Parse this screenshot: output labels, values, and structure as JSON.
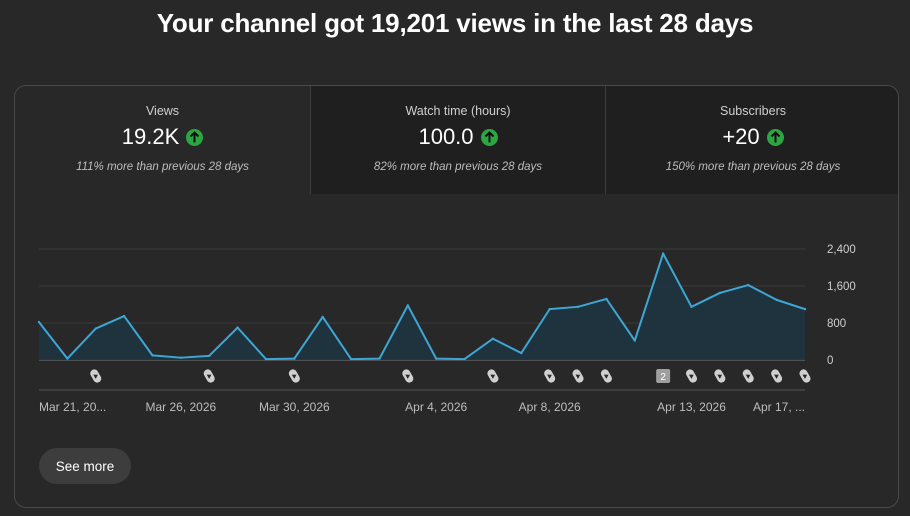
{
  "headline": "Your channel got 19,201 views in the last 28 days",
  "metrics": [
    {
      "label": "Views",
      "value": "19.2K",
      "trend": "up",
      "comparison": "111% more than previous 28 days"
    },
    {
      "label": "Watch time (hours)",
      "value": "100.0",
      "trend": "up",
      "comparison": "82% more than previous 28 days"
    },
    {
      "label": "Subscribers",
      "value": "+20",
      "trend": "up",
      "comparison": "150% more than previous 28 days"
    }
  ],
  "colors": {
    "line": "#3ea6d4",
    "fill": "#1e3440",
    "up_badge": "#2ba640",
    "grid": "#3a3a3a"
  },
  "chart_data": {
    "type": "area",
    "title": "",
    "xlabel": "",
    "ylabel": "",
    "ylim": [
      0,
      2400
    ],
    "yticks": [
      "2,400",
      "1,600",
      "800",
      "0"
    ],
    "ytick_values": [
      2400,
      1600,
      800,
      0
    ],
    "x_labels": [
      {
        "label": "Mar 21, 20...",
        "index": 0
      },
      {
        "label": "Mar 26, 2026",
        "index": 5
      },
      {
        "label": "Mar 30, 2026",
        "index": 9
      },
      {
        "label": "Apr 4, 2026",
        "index": 14
      },
      {
        "label": "Apr 8, 2026",
        "index": 18
      },
      {
        "label": "Apr 13, 2026",
        "index": 23
      },
      {
        "label": "Apr 17, ...",
        "index": 27
      }
    ],
    "series": [
      {
        "values": [
          820,
          30,
          680,
          950,
          100,
          50,
          90,
          700,
          20,
          30,
          930,
          20,
          30,
          1180,
          30,
          20,
          460,
          150,
          1100,
          1150,
          1320,
          420,
          2300,
          1150,
          1450,
          1620,
          1300,
          1100
        ]
      }
    ],
    "markers": [
      {
        "index": 2,
        "icon": "shorts-icon"
      },
      {
        "index": 6,
        "icon": "shorts-icon"
      },
      {
        "index": 9,
        "icon": "shorts-icon"
      },
      {
        "index": 13,
        "icon": "shorts-icon"
      },
      {
        "index": 16,
        "icon": "shorts-icon"
      },
      {
        "index": 18,
        "icon": "shorts-icon"
      },
      {
        "index": 19,
        "icon": "shorts-icon"
      },
      {
        "index": 20,
        "icon": "shorts-icon"
      },
      {
        "index": 22,
        "icon": "count-badge",
        "count": "2"
      },
      {
        "index": 23,
        "icon": "shorts-icon"
      },
      {
        "index": 24,
        "icon": "shorts-icon"
      },
      {
        "index": 25,
        "icon": "shorts-icon"
      },
      {
        "index": 26,
        "icon": "shorts-icon"
      },
      {
        "index": 27,
        "icon": "shorts-icon"
      }
    ]
  },
  "see_more_label": "See more"
}
